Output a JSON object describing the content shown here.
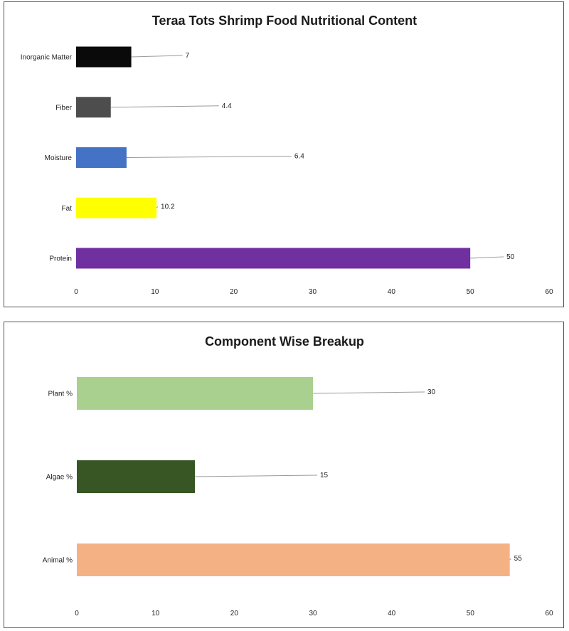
{
  "chart_data": [
    {
      "type": "bar",
      "orientation": "horizontal",
      "title": "Teraa Tots Shrimp Food Nutritional Content",
      "categories": [
        "Inorganic Matter",
        "Fiber",
        "Moisture",
        "Fat",
        "Protein"
      ],
      "values": [
        7,
        4.4,
        6.4,
        10.2,
        50
      ],
      "data_labels": [
        "7",
        "4.4",
        "6.4",
        "10.2",
        "50"
      ],
      "bar_colors": [
        "#0a0a0a",
        "#4d4d4d",
        "#4472c4",
        "#ffff00",
        "#7030a0"
      ],
      "xlim": [
        0,
        60
      ],
      "xticks": [
        0,
        10,
        20,
        30,
        40,
        50,
        60
      ],
      "xlabel": "",
      "ylabel": "",
      "grid": false,
      "legend": "none"
    },
    {
      "type": "bar",
      "orientation": "horizontal",
      "title": "Component Wise Breakup",
      "categories": [
        "Plant %",
        "Algae %",
        "Animal %"
      ],
      "values": [
        30,
        15,
        55
      ],
      "data_labels": [
        "30",
        "15",
        "55"
      ],
      "bar_colors": [
        "#a9d08e",
        "#375623",
        "#f4b183"
      ],
      "xlim": [
        0,
        60
      ],
      "xticks": [
        0,
        10,
        20,
        30,
        40,
        50,
        60
      ],
      "xlabel": "",
      "ylabel": "",
      "grid": false,
      "legend": "none"
    }
  ]
}
